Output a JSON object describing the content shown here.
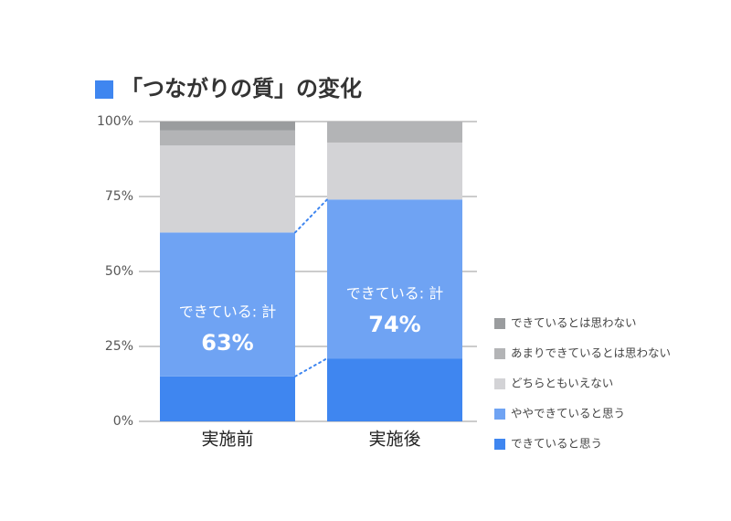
{
  "chart_data": {
    "type": "stacked_bar",
    "title": "「つながりの質」の変化",
    "categories": [
      "実施前",
      "実施後"
    ],
    "series": [
      {
        "name": "できていると思う",
        "color": "#3f86f0",
        "values": [
          15,
          21
        ]
      },
      {
        "name": "ややできていると思う",
        "color": "#6fa3f3",
        "values": [
          48,
          53
        ]
      },
      {
        "name": "どちらともいえない",
        "color": "#d3d3d6",
        "values": [
          29,
          19
        ]
      },
      {
        "name": "あまりできているとは思わない",
        "color": "#b3b4b6",
        "values": [
          5,
          7
        ]
      },
      {
        "name": "できているとは思わない",
        "color": "#9a9c9e",
        "values": [
          3,
          0
        ]
      }
    ],
    "totals": {
      "label": "できている: 計",
      "values": [
        63,
        74
      ],
      "value_labels": [
        "63%",
        "74%"
      ]
    },
    "ylim": [
      0,
      100
    ],
    "yticks": [
      {
        "value": 0,
        "label": "0%"
      },
      {
        "value": 25,
        "label": "25%"
      },
      {
        "value": 50,
        "label": "50%"
      },
      {
        "value": 75,
        "label": "75%"
      },
      {
        "value": 100,
        "label": "100%"
      }
    ],
    "grid": true
  }
}
